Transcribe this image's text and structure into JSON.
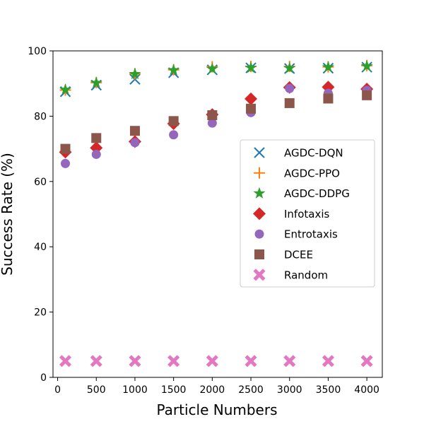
{
  "chart_data": {
    "type": "scatter",
    "title": "",
    "xlabel": "Particle Numbers",
    "ylabel": "Success Rate (%)",
    "xlim": [
      -60,
      4200
    ],
    "ylim": [
      0,
      100
    ],
    "xticks": [
      0,
      500,
      1000,
      1500,
      2000,
      2500,
      3000,
      3500,
      4000
    ],
    "yticks": [
      0,
      20,
      40,
      60,
      80,
      100
    ],
    "grid": false,
    "legend_position": "center-right",
    "x": [
      100,
      500,
      1000,
      1500,
      2000,
      2500,
      3000,
      3500,
      4000
    ],
    "series": [
      {
        "name": "AGDC-DQN",
        "marker": "x",
        "color": "#1f77b4",
        "values": [
          87.5,
          89.5,
          91.3,
          93.3,
          94.2,
          94.8,
          94.6,
          94.7,
          95.0
        ]
      },
      {
        "name": "AGDC-PPO",
        "marker": "plus",
        "color": "#ff7f0e",
        "values": [
          88.0,
          90.3,
          93.0,
          94.2,
          95.1,
          95.2,
          95.2,
          95.1,
          95.5
        ]
      },
      {
        "name": "AGDC-DDPG",
        "marker": "star",
        "color": "#2ca02c",
        "values": [
          88.1,
          90.2,
          92.9,
          94.1,
          94.5,
          94.8,
          94.7,
          95.0,
          95.3
        ]
      },
      {
        "name": "Infotaxis",
        "marker": "diamond",
        "color": "#d62728",
        "values": [
          69.0,
          70.3,
          72.2,
          77.7,
          80.5,
          85.3,
          88.8,
          88.9,
          88.3
        ]
      },
      {
        "name": "Entrotaxis",
        "marker": "circle",
        "color": "#9467bd",
        "values": [
          65.5,
          68.3,
          71.9,
          74.3,
          77.9,
          81.1,
          88.5,
          87.0,
          87.9
        ]
      },
      {
        "name": "DCEE",
        "marker": "square",
        "color": "#8c564b",
        "values": [
          70.0,
          73.3,
          75.5,
          78.5,
          80.3,
          82.3,
          84.0,
          85.4,
          86.4
        ]
      },
      {
        "name": "Random",
        "marker": "X",
        "color": "#e377c2",
        "values": [
          5.0,
          5.0,
          5.0,
          5.0,
          5.0,
          5.0,
          5.0,
          5.0,
          5.0
        ]
      }
    ]
  }
}
